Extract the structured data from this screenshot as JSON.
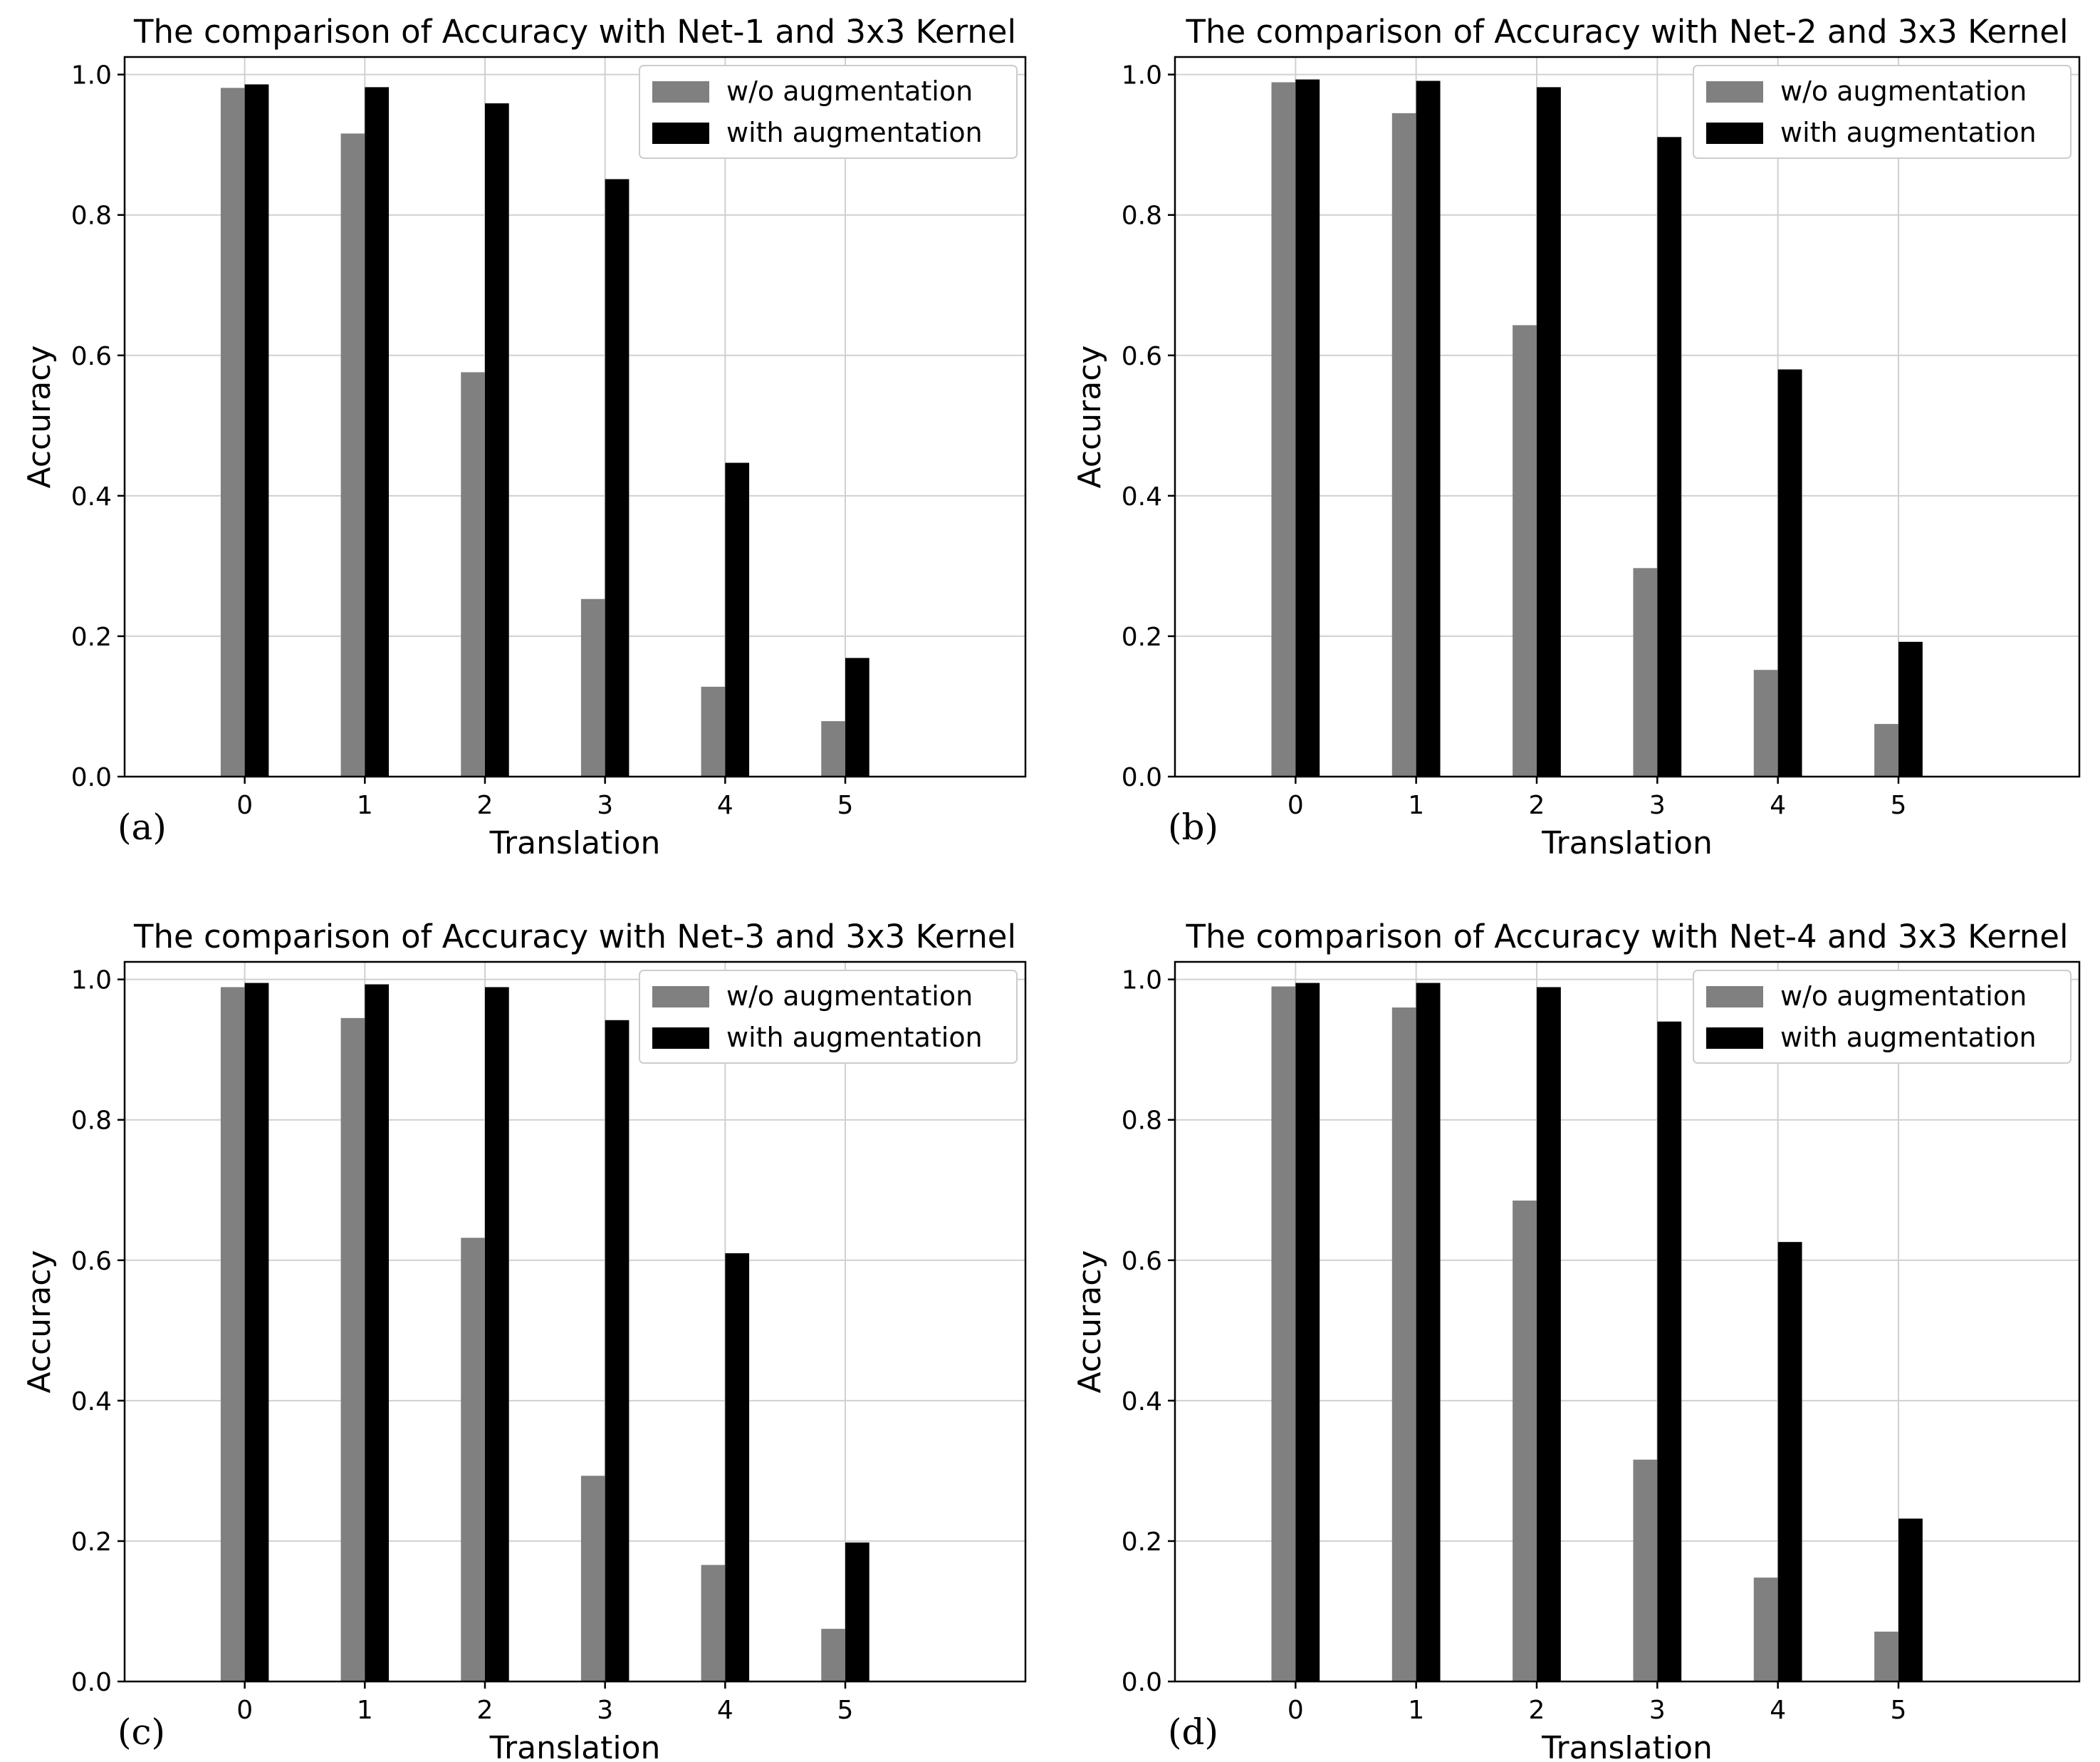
{
  "figure": {
    "series_colors": [
      "#808080",
      "#000000"
    ]
  },
  "chart_data": [
    {
      "type": "bar",
      "panel_label": "(a)",
      "title": "The comparison of Accuracy with Net-1 and 3x3 Kernel",
      "xlabel": "Translation",
      "ylabel": "Accuracy",
      "categories": [
        "0",
        "1",
        "2",
        "3",
        "4",
        "5"
      ],
      "ylim": [
        0,
        1.0
      ],
      "yticks": [
        "0.0",
        "0.2",
        "0.4",
        "0.6",
        "0.8",
        "1.0"
      ],
      "grid": true,
      "legend_position": "top-right",
      "series": [
        {
          "name": "w/o augmentation",
          "values": [
            0.981,
            0.916,
            0.576,
            0.253,
            0.128,
            0.079
          ]
        },
        {
          "name": "with augmentation",
          "values": [
            0.986,
            0.982,
            0.959,
            0.851,
            0.447,
            0.169
          ]
        }
      ]
    },
    {
      "type": "bar",
      "panel_label": "(b)",
      "title": "The comparison of Accuracy with Net-2 and 3x3 Kernel",
      "xlabel": "Translation",
      "ylabel": "Accuracy",
      "categories": [
        "0",
        "1",
        "2",
        "3",
        "4",
        "5"
      ],
      "ylim": [
        0,
        1.0
      ],
      "yticks": [
        "0.0",
        "0.2",
        "0.4",
        "0.6",
        "0.8",
        "1.0"
      ],
      "grid": true,
      "legend_position": "top-right",
      "series": [
        {
          "name": "w/o augmentation",
          "values": [
            0.989,
            0.945,
            0.643,
            0.297,
            0.152,
            0.075
          ]
        },
        {
          "name": "with augmentation",
          "values": [
            0.993,
            0.991,
            0.982,
            0.911,
            0.58,
            0.192
          ]
        }
      ]
    },
    {
      "type": "bar",
      "panel_label": "(c)",
      "title": "The comparison of Accuracy with Net-3 and 3x3 Kernel",
      "xlabel": "Translation",
      "ylabel": "Accuracy",
      "categories": [
        "0",
        "1",
        "2",
        "3",
        "4",
        "5"
      ],
      "ylim": [
        0,
        1.0
      ],
      "yticks": [
        "0.0",
        "0.2",
        "0.4",
        "0.6",
        "0.8",
        "1.0"
      ],
      "grid": true,
      "legend_position": "top-right",
      "series": [
        {
          "name": "w/o augmentation",
          "values": [
            0.989,
            0.945,
            0.632,
            0.293,
            0.166,
            0.075
          ]
        },
        {
          "name": "with augmentation",
          "values": [
            0.995,
            0.993,
            0.989,
            0.942,
            0.61,
            0.198
          ]
        }
      ]
    },
    {
      "type": "bar",
      "panel_label": "(d)",
      "title": "The comparison of Accuracy with Net-4 and 3x3 Kernel",
      "xlabel": "Translation",
      "ylabel": "Accuracy",
      "categories": [
        "0",
        "1",
        "2",
        "3",
        "4",
        "5"
      ],
      "ylim": [
        0,
        1.0
      ],
      "yticks": [
        "0.0",
        "0.2",
        "0.4",
        "0.6",
        "0.8",
        "1.0"
      ],
      "grid": true,
      "legend_position": "top-right",
      "series": [
        {
          "name": "w/o augmentation",
          "values": [
            0.99,
            0.96,
            0.685,
            0.316,
            0.148,
            0.071
          ]
        },
        {
          "name": "with augmentation",
          "values": [
            0.995,
            0.995,
            0.989,
            0.94,
            0.626,
            0.232
          ]
        }
      ]
    }
  ]
}
